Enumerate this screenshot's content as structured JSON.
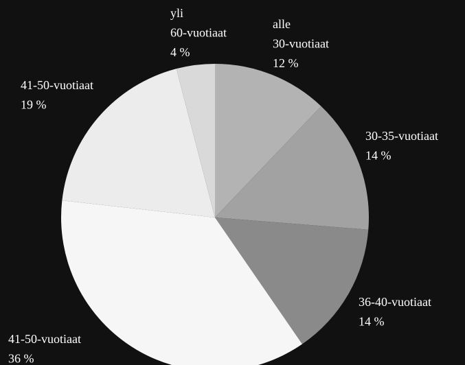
{
  "chart_data": {
    "type": "pie",
    "categories": [
      "alle 30-vuotiaat",
      "30-35-vuotiaat",
      "36-40-vuotiaat",
      "41-50-vuotiaat",
      "41-50-vuotiaat",
      "yli 60-vuotiaat"
    ],
    "values": [
      12,
      14,
      14,
      36,
      19,
      4
    ],
    "value_labels": [
      "12 %",
      "14 %",
      "14 %",
      "36 %",
      "19 %",
      "4 %"
    ],
    "colors": [
      "#b3b3b3",
      "#a2a2a2",
      "#8a8a8a",
      "#f6f6f6",
      "#ececec",
      "#d9d9d9"
    ]
  }
}
